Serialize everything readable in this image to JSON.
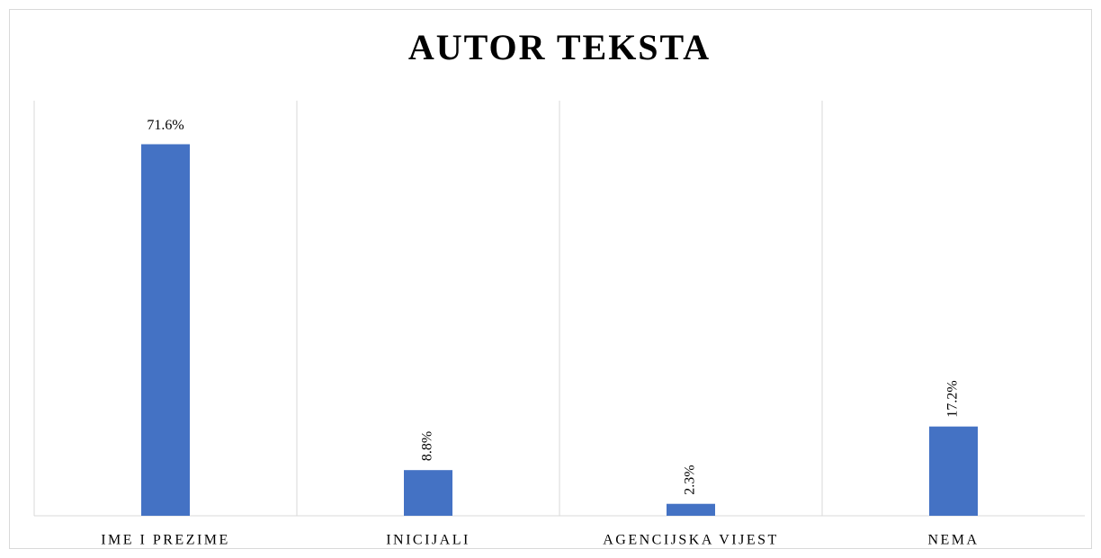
{
  "chart_data": {
    "type": "bar",
    "title": "AUTOR TEKSTA",
    "categories": [
      "IME I PREZIME",
      "INICIJALI",
      "AGENCIJSKA VIJEST",
      "NEMA"
    ],
    "values": [
      71.6,
      8.8,
      2.3,
      17.2
    ],
    "value_labels": [
      "71.6%",
      "8.8%",
      "2.3%",
      "17.2%"
    ],
    "color": "#4472c4",
    "ylim": [
      0,
      80
    ]
  }
}
